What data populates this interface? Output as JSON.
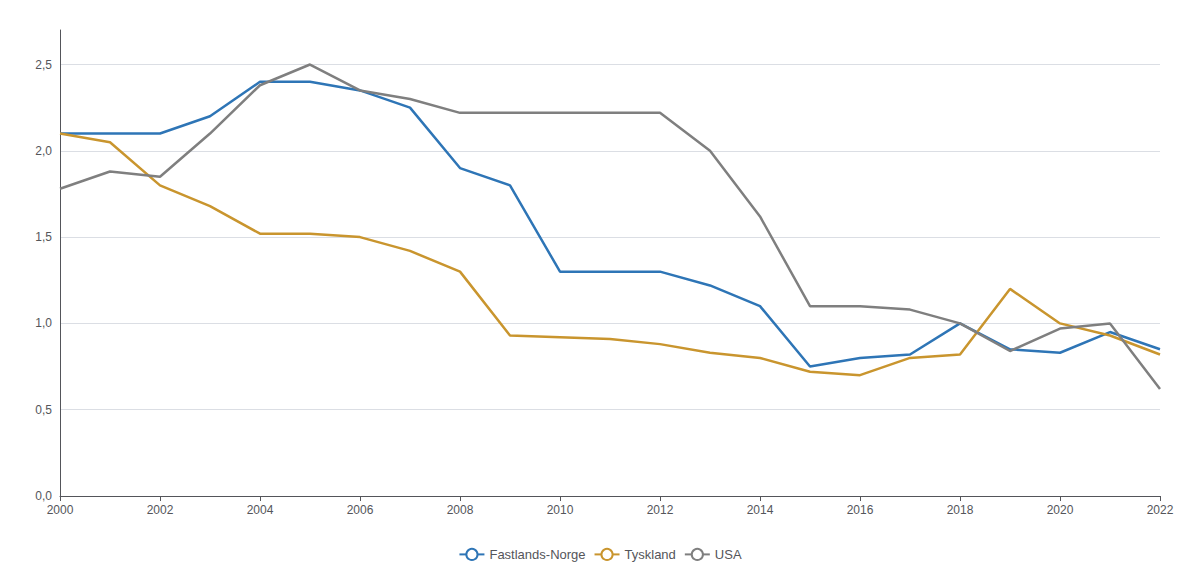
{
  "chart_data": {
    "type": "line",
    "x": [
      2000,
      2001,
      2002,
      2003,
      2004,
      2005,
      2006,
      2007,
      2008,
      2009,
      2010,
      2011,
      2012,
      2013,
      2014,
      2015,
      2016,
      2017,
      2018,
      2019,
      2020,
      2021,
      2022
    ],
    "series": [
      {
        "name": "Fastlands-Norge",
        "color": "#2e75b6",
        "values": [
          2.1,
          2.1,
          2.1,
          2.2,
          2.4,
          2.4,
          2.35,
          2.25,
          1.9,
          1.8,
          1.3,
          1.3,
          1.3,
          1.22,
          1.1,
          0.75,
          0.8,
          0.82,
          1.0,
          0.85,
          0.83,
          0.95,
          0.85
        ]
      },
      {
        "name": "Tyskland",
        "color": "#c9952e",
        "values": [
          2.1,
          2.05,
          1.8,
          1.68,
          1.52,
          1.52,
          1.5,
          1.42,
          1.3,
          0.93,
          0.92,
          0.91,
          0.88,
          0.83,
          0.8,
          0.72,
          0.7,
          0.8,
          0.82,
          1.2,
          1.0,
          0.93,
          0.82
        ]
      },
      {
        "name": "USA",
        "color": "#7f7f7f",
        "values": [
          1.78,
          1.88,
          1.85,
          2.1,
          2.38,
          2.5,
          2.35,
          2.3,
          2.22,
          2.22,
          2.22,
          2.22,
          2.22,
          2.0,
          1.62,
          1.1,
          1.1,
          1.08,
          1.0,
          0.84,
          0.97,
          1.0,
          0.62
        ]
      }
    ],
    "xlim": [
      2000,
      2022
    ],
    "xticks": [
      2000,
      2002,
      2004,
      2006,
      2008,
      2010,
      2012,
      2014,
      2016,
      2018,
      2020,
      2022
    ],
    "ylim": [
      0.0,
      2.7
    ],
    "yticks": [
      {
        "value": 0.0,
        "label": "0,0"
      },
      {
        "value": 0.5,
        "label": "0,5"
      },
      {
        "value": 1.0,
        "label": "1,0"
      },
      {
        "value": 1.5,
        "label": "1,5"
      },
      {
        "value": 2.0,
        "label": "2,0"
      },
      {
        "value": 2.5,
        "label": "2,5"
      }
    ],
    "grid": true,
    "legend": "bottom"
  }
}
